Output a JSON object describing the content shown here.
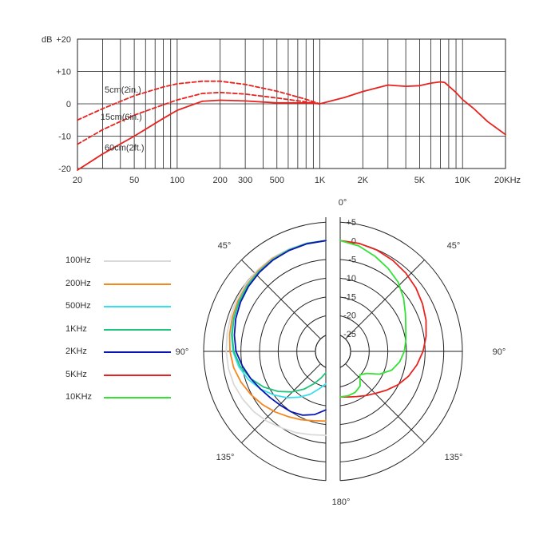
{
  "chart_data": [
    {
      "type": "line",
      "title": "",
      "xlabel": "",
      "ylabel": "dB",
      "x_scale": "log",
      "xlim": [
        20,
        20000
      ],
      "ylim": [
        -20,
        20
      ],
      "grid": true,
      "x_ticks": [
        20,
        50,
        100,
        200,
        300,
        500,
        1000,
        2000,
        5000,
        10000,
        20000
      ],
      "x_tick_labels": [
        "20",
        "50",
        "100",
        "200",
        "300",
        "500",
        "1K",
        "2K",
        "5K",
        "10K",
        "20KHz"
      ],
      "y_ticks": [
        20,
        10,
        0,
        -10,
        -20
      ],
      "y_tick_labels": [
        "+20",
        "+10",
        "0",
        "-10",
        "-20"
      ],
      "series": [
        {
          "name": "60cm(2ft.)",
          "color": "#e8221e",
          "style": "solid",
          "x": [
            20,
            30,
            50,
            80,
            100,
            150,
            200,
            300,
            500,
            800,
            1000,
            1500,
            2000,
            3000,
            4000,
            5000,
            6000,
            7000,
            7500,
            9000,
            10000,
            12000,
            15000,
            20000
          ],
          "y": [
            -20.5,
            -15.5,
            -10,
            -4.5,
            -2,
            0.8,
            1.1,
            0.9,
            0.3,
            0.3,
            0,
            2,
            3.8,
            5.8,
            5.4,
            5.6,
            6.4,
            6.8,
            6.6,
            3.5,
            1.3,
            -1.5,
            -5.5,
            -9.5
          ]
        },
        {
          "name": "15cm(6in.)",
          "color": "#e8221e",
          "style": "dashed",
          "x": [
            20,
            30,
            50,
            80,
            100,
            150,
            200,
            300,
            500,
            800,
            1000
          ],
          "y": [
            -12.5,
            -8,
            -3.5,
            -0.3,
            1.2,
            3.2,
            3.5,
            3.0,
            1.8,
            0.6,
            0
          ]
        },
        {
          "name": "5cm(2in.)",
          "color": "#e8221e",
          "style": "dashed",
          "x": [
            20,
            30,
            50,
            80,
            100,
            150,
            200,
            300,
            500,
            800,
            1000
          ],
          "y": [
            -5,
            -1.5,
            2.5,
            5.2,
            6.2,
            7,
            7,
            6,
            3.9,
            1.4,
            0
          ]
        }
      ],
      "annotations": [
        "5cm(2in.)",
        "15cm(6in.)",
        "60cm(2ft.)"
      ]
    },
    {
      "type": "polar",
      "title": "",
      "r_ticks": [
        "+5",
        "0",
        "-5",
        "-10",
        "-15",
        "-20",
        "-25"
      ],
      "r_tick_values": [
        5,
        0,
        -5,
        -10,
        -15,
        -20,
        -25
      ],
      "r_range": [
        -25,
        5
      ],
      "angle_labels": [
        "0°",
        "45°",
        "45°",
        "90°",
        "90°",
        "135°",
        "135°",
        "180°"
      ],
      "legend": [
        {
          "name": "100Hz",
          "color": "#d9d9d9"
        },
        {
          "name": "200Hz",
          "color": "#f5871f"
        },
        {
          "name": "500Hz",
          "color": "#33e0f0"
        },
        {
          "name": "1KHz",
          "color": "#1fc47a"
        },
        {
          "name": "2KHz",
          "color": "#0a16b4"
        },
        {
          "name": "5KHz",
          "color": "#e8221e"
        },
        {
          "name": "10KHz",
          "color": "#33e233"
        }
      ],
      "series": [
        {
          "name": "100Hz",
          "color": "#d9d9d9",
          "side": "left",
          "angles": [
            0,
            10,
            20,
            30,
            40,
            50,
            60,
            70,
            80,
            90,
            100,
            110,
            120,
            130,
            140,
            150,
            160,
            170,
            180
          ],
          "values": [
            0,
            -0.2,
            -0.5,
            -0.8,
            -1.2,
            -1.6,
            -2,
            -2.5,
            -2.8,
            -3,
            -3.2,
            -3.5,
            -4,
            -4.5,
            -5.2,
            -6,
            -6.5,
            -7,
            -7.2
          ]
        },
        {
          "name": "200Hz",
          "color": "#f5871f",
          "side": "left",
          "angles": [
            0,
            10,
            20,
            30,
            40,
            50,
            60,
            70,
            80,
            90,
            100,
            110,
            120,
            130,
            140,
            150,
            160,
            170,
            180
          ],
          "values": [
            0,
            -0.3,
            -0.7,
            -1,
            -1.5,
            -2,
            -2.5,
            -3,
            -3.5,
            -4,
            -4.6,
            -5.5,
            -6.5,
            -7.5,
            -8.5,
            -9.5,
            -10.2,
            -10.8,
            -11
          ]
        },
        {
          "name": "500Hz",
          "color": "#33e0f0",
          "side": "left",
          "angles": [
            0,
            10,
            20,
            30,
            40,
            50,
            60,
            70,
            80,
            90,
            100,
            110,
            120,
            130,
            140,
            150,
            160,
            170,
            180
          ],
          "values": [
            0,
            -0.3,
            -0.7,
            -1.2,
            -1.7,
            -2.2,
            -2.8,
            -3.4,
            -4,
            -4.8,
            -6,
            -7.6,
            -9.5,
            -11.5,
            -13.5,
            -15.5,
            -17.5,
            -19.5,
            -21
          ]
        },
        {
          "name": "1KHz",
          "color": "#1fc47a",
          "side": "left",
          "angles": [
            0,
            10,
            20,
            30,
            40,
            50,
            60,
            70,
            80,
            90,
            100,
            110,
            120,
            130,
            140,
            150,
            160,
            170,
            180
          ],
          "values": [
            0,
            -0.3,
            -0.8,
            -1.3,
            -1.8,
            -2.3,
            -2.9,
            -3.5,
            -4.2,
            -5,
            -6.4,
            -8.3,
            -10.5,
            -13,
            -15.5,
            -18,
            -20.5,
            -22.5,
            -24
          ]
        },
        {
          "name": "2KHz",
          "color": "#0a16b4",
          "side": "left",
          "angles": [
            0,
            10,
            20,
            30,
            40,
            50,
            60,
            70,
            80,
            90,
            100,
            110,
            120,
            130,
            140,
            150,
            160,
            170,
            180
          ],
          "values": [
            0,
            -0.4,
            -0.9,
            -1.4,
            -2,
            -2.6,
            -3.3,
            -4,
            -4.8,
            -5.6,
            -7,
            -8.3,
            -9.5,
            -10.3,
            -10.8,
            -11,
            -11.5,
            -12.5,
            -14
          ]
        },
        {
          "name": "5KHz",
          "color": "#e8221e",
          "side": "right",
          "angles": [
            0,
            10,
            20,
            30,
            40,
            50,
            60,
            70,
            80,
            90,
            100,
            110,
            120,
            130,
            140,
            150,
            160,
            170,
            180
          ],
          "values": [
            0,
            -0.3,
            -0.8,
            -1.5,
            -2.3,
            -3.2,
            -4.2,
            -5.2,
            -6.3,
            -7.5,
            -8.8,
            -10.2,
            -11.8,
            -13.5,
            -15,
            -16,
            -16.8,
            -17.3,
            -17.5
          ]
        },
        {
          "name": "10KHz",
          "color": "#33e233",
          "side": "right",
          "angles": [
            0,
            10,
            20,
            30,
            40,
            50,
            60,
            70,
            80,
            90,
            100,
            110,
            120,
            130,
            140,
            150,
            160,
            170,
            180
          ],
          "values": [
            0,
            -1,
            -2.5,
            -4,
            -5.5,
            -7.5,
            -9.5,
            -11,
            -11.8,
            -12.5,
            -13.5,
            -15,
            -17.5,
            -20.5,
            -21.5,
            -19,
            -18,
            -17.6,
            -17.5
          ]
        }
      ]
    }
  ]
}
